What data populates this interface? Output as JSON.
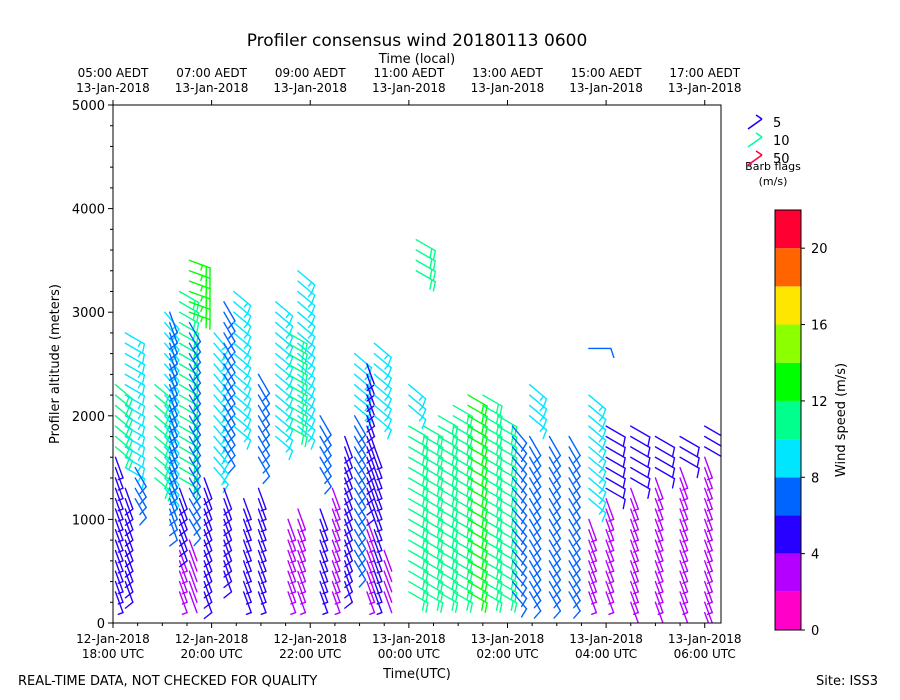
{
  "chart_data": {
    "type": "wind-barb-profile",
    "title": "Profiler consensus wind 20180113 0600",
    "top_axis_label": "Time (local)",
    "xlabel": "Time(UTC)",
    "ylabel": "Profiler altitude (meters)",
    "x_range_hours_utc": [
      17.5,
      6.25
    ],
    "x_range_hours": [
      0,
      12.33
    ],
    "ylim": [
      0,
      5000
    ],
    "y_ticks": [
      0,
      1000,
      2000,
      3000,
      4000,
      5000
    ],
    "bottom_ticks": [
      {
        "h": 0.5,
        "line1": "12-Jan-2018",
        "line2": "18:00 UTC"
      },
      {
        "h": 2.5,
        "line1": "12-Jan-2018",
        "line2": "20:00 UTC"
      },
      {
        "h": 4.5,
        "line1": "12-Jan-2018",
        "line2": "22:00 UTC"
      },
      {
        "h": 6.5,
        "line1": "13-Jan-2018",
        "line2": "00:00 UTC"
      },
      {
        "h": 8.5,
        "line1": "13-Jan-2018",
        "line2": "02:00 UTC"
      },
      {
        "h": 10.5,
        "line1": "13-Jan-2018",
        "line2": "04:00 UTC"
      },
      {
        "h": 12.5,
        "line1": "13-Jan-2018",
        "line2": "06:00 UTC"
      }
    ],
    "top_ticks": [
      {
        "h": 0.0,
        "line1": "05:00 AEDT",
        "line2": "13-Jan-2018"
      },
      {
        "h": 2.0,
        "line1": "07:00 AEDT",
        "line2": "13-Jan-2018"
      },
      {
        "h": 4.0,
        "line1": "09:00 AEDT",
        "line2": "13-Jan-2018"
      },
      {
        "h": 6.0,
        "line1": "11:00 AEDT",
        "line2": "13-Jan-2018"
      },
      {
        "h": 8.0,
        "line1": "13:00 AEDT",
        "line2": "13-Jan-2018"
      },
      {
        "h": 10.0,
        "line1": "15:00 AEDT",
        "line2": "13-Jan-2018"
      },
      {
        "h": 12.0,
        "line1": "17:00 AEDT",
        "line2": "13-Jan-2018"
      }
    ],
    "legend": {
      "title_line1": "Barb flags",
      "title_line2": "(m/s)",
      "entries": [
        {
          "label": "5",
          "color": "#1a00ff"
        },
        {
          "label": "10",
          "color": "#00ff9c"
        },
        {
          "label": "50",
          "color": "#ff0040"
        }
      ]
    },
    "colorbar": {
      "label": "Wind speed (m/s)",
      "ticks": [
        "0",
        "4",
        "8",
        "12",
        "16",
        "20"
      ],
      "tick_values": [
        0,
        4,
        8,
        12,
        16,
        20
      ],
      "range": [
        0,
        22
      ],
      "bins": [
        {
          "lo": 0,
          "hi": 2,
          "color": "#ff00c8"
        },
        {
          "lo": 2,
          "hi": 4,
          "color": "#b400ff"
        },
        {
          "lo": 4,
          "hi": 6,
          "color": "#2800ff"
        },
        {
          "lo": 6,
          "hi": 8,
          "color": "#0064ff"
        },
        {
          "lo": 8,
          "hi": 10,
          "color": "#00e6ff"
        },
        {
          "lo": 10,
          "hi": 12,
          "color": "#00ff8c"
        },
        {
          "lo": 12,
          "hi": 14,
          "color": "#00ff00"
        },
        {
          "lo": 14,
          "hi": 16,
          "color": "#8cff00"
        },
        {
          "lo": 16,
          "hi": 18,
          "color": "#ffe600"
        },
        {
          "lo": 18,
          "hi": 20,
          "color": "#ff6400"
        },
        {
          "lo": 20,
          "hi": 22,
          "color": "#ff0032"
        }
      ]
    },
    "profiles": [
      {
        "h": 0.05,
        "segs": [
          {
            "z0": 300,
            "z1": 1600,
            "spd": 4,
            "dir": 200
          },
          {
            "z0": 1700,
            "z1": 2300,
            "spd": 11,
            "dir": 230
          }
        ]
      },
      {
        "h": 0.25,
        "segs": [
          {
            "z0": 400,
            "z1": 1300,
            "spd": 5,
            "dir": 200
          },
          {
            "z0": 1500,
            "z1": 2800,
            "spd": 9,
            "dir": 240
          }
        ]
      },
      {
        "h": 0.45,
        "segs": [
          {
            "z0": 1200,
            "z1": 1500,
            "spd": 6,
            "dir": 210
          }
        ]
      },
      {
        "h": 0.85,
        "segs": [
          {
            "z0": 1400,
            "z1": 2300,
            "spd": 10,
            "dir": 230
          }
        ]
      },
      {
        "h": 1.05,
        "segs": [
          {
            "z0": 1300,
            "z1": 3000,
            "spd": 8,
            "dir": 220
          }
        ]
      },
      {
        "h": 1.15,
        "segs": [
          {
            "z0": 1000,
            "z1": 3000,
            "spd": 6,
            "dir": 200
          }
        ]
      },
      {
        "h": 1.35,
        "segs": [
          {
            "z0": 300,
            "z1": 700,
            "spd": 3,
            "dir": 200
          },
          {
            "z0": 800,
            "z1": 1300,
            "spd": 5,
            "dir": 200
          },
          {
            "z0": 1400,
            "z1": 3200,
            "spd": 10,
            "dir": 240
          }
        ]
      },
      {
        "h": 1.55,
        "segs": [
          {
            "z0": 300,
            "z1": 800,
            "spd": 2,
            "dir": 200
          },
          {
            "z0": 1000,
            "z1": 2900,
            "spd": 6,
            "dir": 210
          },
          {
            "z0": 3000,
            "z1": 3500,
            "spd": 13,
            "dir": 250
          }
        ]
      },
      {
        "h": 1.85,
        "segs": [
          {
            "z0": 300,
            "z1": 1400,
            "spd": 5,
            "dir": 200
          }
        ]
      },
      {
        "h": 2.05,
        "segs": [
          {
            "z0": 1500,
            "z1": 2800,
            "spd": 8,
            "dir": 220
          }
        ]
      },
      {
        "h": 2.25,
        "segs": [
          {
            "z0": 500,
            "z1": 1300,
            "spd": 5,
            "dir": 200
          },
          {
            "z0": 1700,
            "z1": 3100,
            "spd": 6,
            "dir": 210
          }
        ]
      },
      {
        "h": 2.45,
        "segs": [
          {
            "z0": 1900,
            "z1": 3200,
            "spd": 9,
            "dir": 230
          }
        ]
      },
      {
        "h": 2.65,
        "segs": [
          {
            "z0": 300,
            "z1": 1200,
            "spd": 4,
            "dir": 200
          }
        ]
      },
      {
        "h": 2.95,
        "segs": [
          {
            "z0": 300,
            "z1": 1300,
            "spd": 4,
            "dir": 200
          },
          {
            "z0": 1600,
            "z1": 2400,
            "spd": 6,
            "dir": 210
          }
        ]
      },
      {
        "h": 3.3,
        "segs": [
          {
            "z0": 1800,
            "z1": 3100,
            "spd": 9,
            "dir": 230
          }
        ]
      },
      {
        "h": 3.55,
        "segs": [
          {
            "z0": 300,
            "z1": 1000,
            "spd": 3,
            "dir": 200
          },
          {
            "z0": 1900,
            "z1": 2800,
            "spd": 10,
            "dir": 240
          }
        ]
      },
      {
        "h": 3.75,
        "segs": [
          {
            "z0": 300,
            "z1": 1100,
            "spd": 3,
            "dir": 200
          },
          {
            "z0": 1900,
            "z1": 3400,
            "spd": 9,
            "dir": 230
          }
        ]
      },
      {
        "h": 4.2,
        "segs": [
          {
            "z0": 300,
            "z1": 1100,
            "spd": 4,
            "dir": 200
          },
          {
            "z0": 1500,
            "z1": 2000,
            "spd": 6,
            "dir": 210
          }
        ]
      },
      {
        "h": 4.45,
        "segs": [
          {
            "z0": 300,
            "z1": 1300,
            "spd": 3,
            "dir": 200
          }
        ]
      },
      {
        "h": 4.7,
        "segs": [
          {
            "z0": 400,
            "z1": 1800,
            "spd": 5,
            "dir": 200
          }
        ]
      },
      {
        "h": 4.9,
        "segs": [
          {
            "z0": 600,
            "z1": 2000,
            "spd": 6,
            "dir": 210
          },
          {
            "z0": 2100,
            "z1": 2600,
            "spd": 9,
            "dir": 230
          }
        ]
      },
      {
        "h": 5.15,
        "segs": [
          {
            "z0": 300,
            "z1": 1000,
            "spd": 3,
            "dir": 200
          },
          {
            "z0": 1200,
            "z1": 2500,
            "spd": 5,
            "dir": 200
          }
        ]
      },
      {
        "h": 5.3,
        "segs": [
          {
            "z0": 300,
            "z1": 1700,
            "spd": 4,
            "dir": 200
          },
          {
            "z0": 2000,
            "z1": 2700,
            "spd": 9,
            "dir": 230
          }
        ]
      },
      {
        "h": 5.5,
        "segs": [
          {
            "z0": 300,
            "z1": 700,
            "spd": 2,
            "dir": 200
          }
        ]
      },
      {
        "h": 6.0,
        "segs": [
          {
            "z0": 300,
            "z1": 1900,
            "spd": 11,
            "dir": 240
          },
          {
            "z0": 2100,
            "z1": 2300,
            "spd": 9,
            "dir": 230
          }
        ]
      },
      {
        "h": 6.15,
        "segs": [
          {
            "z0": 3400,
            "z1": 3700,
            "spd": 10,
            "dir": 240
          }
        ]
      },
      {
        "h": 6.3,
        "segs": [
          {
            "z0": 300,
            "z1": 1900,
            "spd": 11,
            "dir": 240
          }
        ]
      },
      {
        "h": 6.6,
        "segs": [
          {
            "z0": 300,
            "z1": 2000,
            "spd": 11,
            "dir": 240
          }
        ]
      },
      {
        "h": 6.9,
        "segs": [
          {
            "z0": 300,
            "z1": 2100,
            "spd": 11,
            "dir": 240
          }
        ]
      },
      {
        "h": 7.2,
        "segs": [
          {
            "z0": 300,
            "z1": 2200,
            "spd": 12,
            "dir": 240
          }
        ]
      },
      {
        "h": 7.5,
        "segs": [
          {
            "z0": 300,
            "z1": 2200,
            "spd": 11,
            "dir": 240
          }
        ]
      },
      {
        "h": 7.8,
        "segs": [
          {
            "z0": 300,
            "z1": 2000,
            "spd": 11,
            "dir": 240
          }
        ]
      },
      {
        "h": 8.1,
        "segs": [
          {
            "z0": 300,
            "z1": 1900,
            "spd": 7,
            "dir": 220
          }
        ]
      },
      {
        "h": 8.45,
        "segs": [
          {
            "z0": 300,
            "z1": 1800,
            "spd": 6,
            "dir": 210
          },
          {
            "z0": 2000,
            "z1": 2300,
            "spd": 9,
            "dir": 230
          }
        ]
      },
      {
        "h": 8.85,
        "segs": [
          {
            "z0": 300,
            "z1": 1800,
            "spd": 6,
            "dir": 210
          }
        ]
      },
      {
        "h": 9.25,
        "segs": [
          {
            "z0": 300,
            "z1": 1800,
            "spd": 6,
            "dir": 210
          }
        ]
      },
      {
        "h": 9.65,
        "segs": [
          {
            "z0": 300,
            "z1": 1000,
            "spd": 3,
            "dir": 200
          },
          {
            "z0": 1200,
            "z1": 2200,
            "spd": 9,
            "dir": 230
          },
          {
            "z0": 2650,
            "z1": 2650,
            "spd": 7,
            "dir": 270
          }
        ]
      },
      {
        "h": 10.0,
        "segs": [
          {
            "z0": 300,
            "z1": 1200,
            "spd": 3,
            "dir": 200
          },
          {
            "z0": 1300,
            "z1": 1900,
            "spd": 5,
            "dir": 240
          }
        ]
      },
      {
        "h": 10.5,
        "segs": [
          {
            "z0": 200,
            "z1": 1300,
            "spd": 3,
            "dir": 200
          },
          {
            "z0": 1400,
            "z1": 1900,
            "spd": 5,
            "dir": 240
          }
        ]
      },
      {
        "h": 11.0,
        "segs": [
          {
            "z0": 200,
            "z1": 1400,
            "spd": 3,
            "dir": 200
          },
          {
            "z0": 1500,
            "z1": 1800,
            "spd": 5,
            "dir": 240
          }
        ]
      },
      {
        "h": 11.5,
        "segs": [
          {
            "z0": 200,
            "z1": 1500,
            "spd": 3,
            "dir": 200
          },
          {
            "z0": 1600,
            "z1": 1800,
            "spd": 5,
            "dir": 240
          }
        ]
      },
      {
        "h": 12.0,
        "segs": [
          {
            "z0": 100,
            "z1": 1600,
            "spd": 3,
            "dir": 200
          },
          {
            "z0": 1700,
            "z1": 1900,
            "spd": 5,
            "dir": 240
          }
        ]
      }
    ]
  },
  "footer": {
    "left": "REAL-TIME DATA, NOT CHECKED FOR QUALITY",
    "right": "Site: ISS3"
  }
}
